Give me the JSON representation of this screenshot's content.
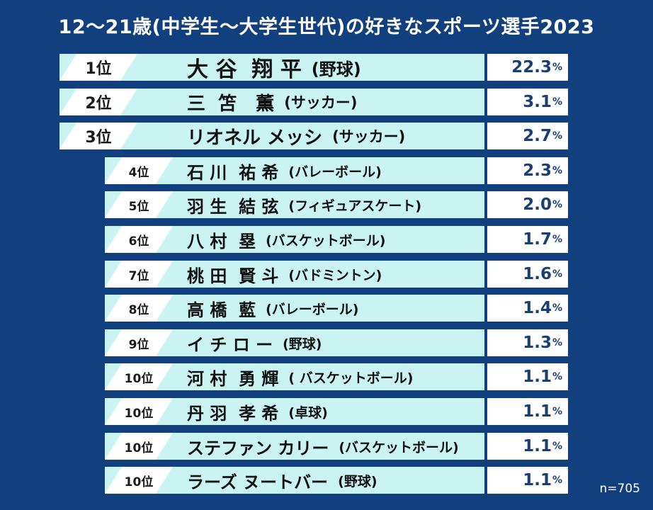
{
  "title": "12～21歳(中学生～大学生世代)の好きなスポーツ選手2023",
  "note": "n=705",
  "colors": {
    "background": "#123f7d",
    "band": "#c9f4f2",
    "rank_box": "#ffffff",
    "value_text": "#1a3f74"
  },
  "chart_data": {
    "type": "table",
    "title": "12～21歳(中学生～大学生世代)の好きなスポーツ選手2023",
    "sample_size": "n=705",
    "columns": [
      "rank",
      "player",
      "sport",
      "percent"
    ],
    "rows": [
      {
        "rank": "1位",
        "name": "大 谷  翔 平",
        "sport": "(野球)",
        "value": 22.3,
        "value_label": "22.3",
        "unit": "%"
      },
      {
        "rank": "2位",
        "name": "三  笘   薫",
        "sport": "(サッカー)",
        "value": 3.1,
        "value_label": "3.1",
        "unit": "%"
      },
      {
        "rank": "3位",
        "name": "リオネル メッシ",
        "sport": "(サッカー)",
        "value": 2.7,
        "value_label": "2.7",
        "unit": "%"
      },
      {
        "rank": "4位",
        "name": "石 川  祐 希",
        "sport": "(バレーボール)",
        "value": 2.3,
        "value_label": "2.3",
        "unit": "%"
      },
      {
        "rank": "5位",
        "name": "羽 生  結 弦",
        "sport": "(フィギュアスケート)",
        "value": 2.0,
        "value_label": "2.0",
        "unit": "%"
      },
      {
        "rank": "6位",
        "name": "八 村  塁",
        "sport": "(バスケットボール)",
        "value": 1.7,
        "value_label": "1.7",
        "unit": "%"
      },
      {
        "rank": "7位",
        "name": "桃 田  賢 斗",
        "sport": "(バドミントン)",
        "value": 1.6,
        "value_label": "1.6",
        "unit": "%"
      },
      {
        "rank": "8位",
        "name": "高 橋  藍",
        "sport": "(バレーボール)",
        "value": 1.4,
        "value_label": "1.4",
        "unit": "%"
      },
      {
        "rank": "9位",
        "name": "イ チ ロ ー",
        "sport": "(野球)",
        "value": 1.3,
        "value_label": "1.3",
        "unit": "%"
      },
      {
        "rank": "10位",
        "name": "河 村  勇 輝",
        "sport": "( バスケットボール)",
        "value": 1.1,
        "value_label": "1.1",
        "unit": "%"
      },
      {
        "rank": "10位",
        "name": "丹 羽  孝 希",
        "sport": "(卓球)",
        "value": 1.1,
        "value_label": "1.1",
        "unit": "%"
      },
      {
        "rank": "10位",
        "name": "ステファン カリー",
        "sport": "(バスケットボール)",
        "value": 1.1,
        "value_label": "1.1",
        "unit": "%"
      },
      {
        "rank": "10位",
        "name": "ラーズ ヌートバー",
        "sport": "(野球)",
        "value": 1.1,
        "value_label": "1.1",
        "unit": "%"
      }
    ]
  }
}
